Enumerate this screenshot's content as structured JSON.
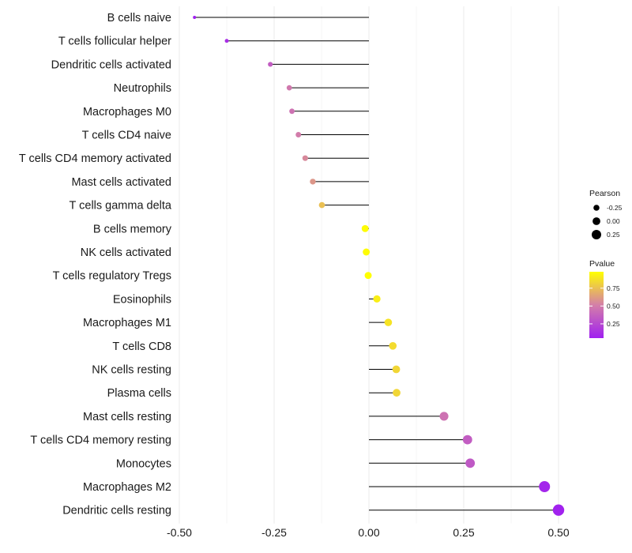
{
  "chart_data": {
    "type": "lollipop",
    "title": "",
    "xlabel": "",
    "ylabel": "",
    "xlim": [
      -0.5,
      0.5
    ],
    "xticks": [
      -0.5,
      -0.25,
      0.0,
      0.25,
      0.5
    ],
    "xtick_labels": [
      "-0.50",
      "-0.25",
      "0.00",
      "0.25",
      "0.50"
    ],
    "grid": true,
    "categories": [
      "B cells naive",
      "T cells follicular helper",
      "Dendritic cells activated",
      "Neutrophils",
      "Macrophages M0",
      "T cells CD4 naive",
      "T cells CD4 memory activated",
      "Mast cells activated",
      "T cells gamma delta",
      "B cells memory",
      "NK cells activated",
      "T cells regulatory  Tregs ",
      "Eosinophils",
      "Macrophages M1",
      "T cells CD8",
      "NK cells resting",
      "Plasma cells",
      "Mast cells resting",
      "T cells CD4 memory resting",
      "Monocytes",
      "Macrophages M2",
      "Dendritic cells resting"
    ],
    "values": [
      -0.46,
      -0.375,
      -0.26,
      -0.21,
      -0.203,
      -0.186,
      -0.168,
      -0.148,
      -0.124,
      -0.01,
      -0.007,
      -0.002,
      0.021,
      0.051,
      0.063,
      0.072,
      0.073,
      0.198,
      0.26,
      0.267,
      0.463,
      0.5
    ],
    "pvalues": [
      0.05,
      0.12,
      0.35,
      0.48,
      0.45,
      0.5,
      0.55,
      0.6,
      0.75,
      0.97,
      0.97,
      0.98,
      0.92,
      0.88,
      0.85,
      0.83,
      0.83,
      0.45,
      0.35,
      0.33,
      0.08,
      0.06
    ],
    "legend": {
      "position": "right",
      "size": {
        "title": "Pearson",
        "entries": [
          "-0.25",
          "0.00",
          "0.25"
        ],
        "values": [
          -0.25,
          0.0,
          0.25
        ]
      },
      "color": {
        "title": "Pvalue",
        "entries": [
          "0.75",
          "0.50",
          "0.25"
        ],
        "values": [
          0.75,
          0.5,
          0.25
        ],
        "range": [
          0.05,
          0.98
        ],
        "low_color": "#a020f0",
        "mid_color": "#d47fa8",
        "high_color": "#ffff00"
      }
    }
  }
}
